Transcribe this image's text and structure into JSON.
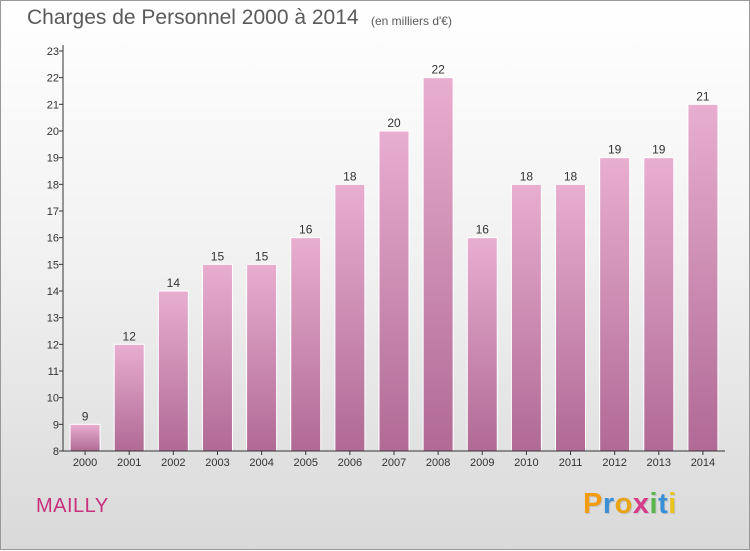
{
  "title": "Charges de Personnel 2000 à 2014",
  "unit_label": "(en milliers d'€)",
  "commune": "MAILLY",
  "logo": {
    "letters": [
      "P",
      "r",
      "o",
      "x",
      "i",
      "t",
      "i"
    ],
    "colors": [
      "#f39c12",
      "#3a8fd6",
      "#e8a317",
      "#d63b8a",
      "#5ab54a",
      "#3a8fd6",
      "#e8c31a"
    ]
  },
  "colors": {
    "bar_top": "#e8aed0",
    "bar_bottom": "#b06a95",
    "bar_stroke": "#ffffff",
    "commune": "#c8307e",
    "text": "#5a5a5a"
  },
  "chart_data": {
    "type": "bar",
    "categories": [
      "2000",
      "2001",
      "2002",
      "2003",
      "2004",
      "2005",
      "2006",
      "2007",
      "2008",
      "2009",
      "2010",
      "2011",
      "2012",
      "2013",
      "2014"
    ],
    "values": [
      9,
      12,
      14,
      15,
      15,
      16,
      18,
      20,
      22,
      16,
      18,
      18,
      19,
      19,
      21
    ],
    "data_labels": [
      "9",
      "12",
      "14",
      "15",
      "15",
      "16",
      "18",
      "20",
      "22",
      "16",
      "18",
      "18",
      "19",
      "19",
      "21"
    ],
    "title": "Charges de Personnel 2000 à 2014",
    "xlabel": "",
    "ylabel": "",
    "ylim": [
      8,
      23
    ],
    "y_ticks": [
      8,
      9,
      10,
      11,
      12,
      13,
      14,
      15,
      16,
      17,
      18,
      19,
      20,
      21,
      22,
      23
    ],
    "grid": false,
    "legend": "none"
  }
}
